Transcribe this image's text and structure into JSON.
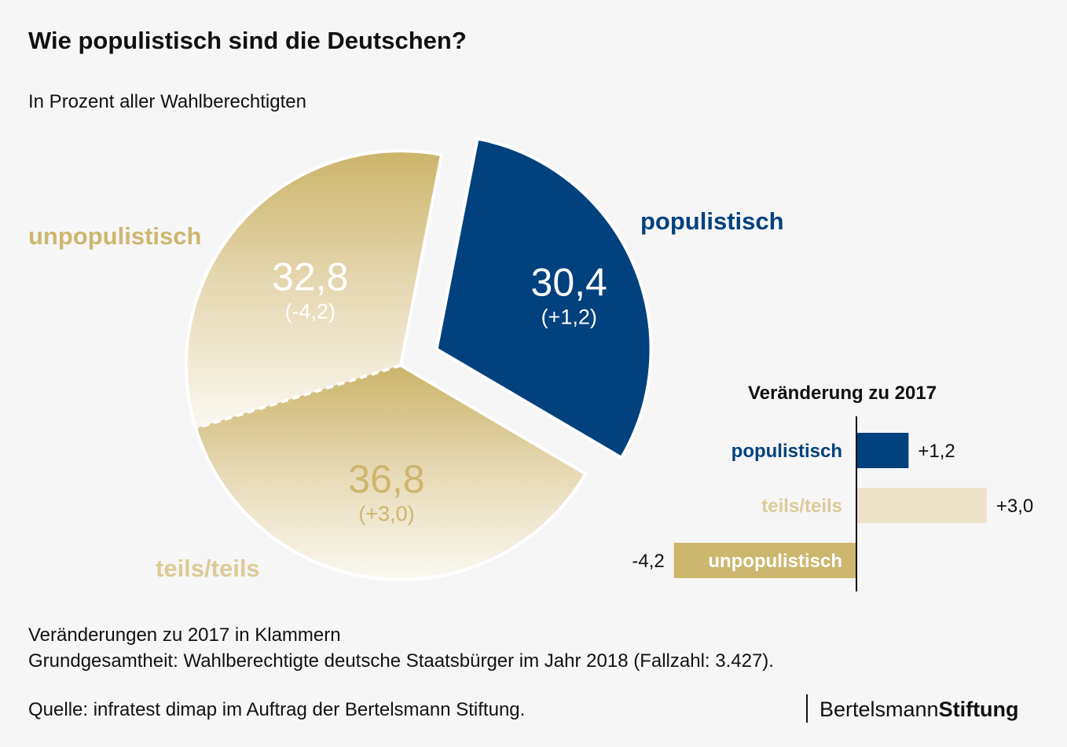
{
  "title": "Wie populistisch sind die Deutschen?",
  "subtitle": "In Prozent aller Wahlberechtigten",
  "colors": {
    "populistisch": "#00417e",
    "unpopulistisch": "#cdb66e",
    "teils": "#ece2c8",
    "teils_label": "#dccb96",
    "background": "#f6f6f6"
  },
  "chart_data": [
    {
      "type": "pie",
      "title": "Wie populistisch sind die Deutschen?",
      "unit": "Prozent",
      "slices": [
        {
          "name": "populistisch",
          "value": 30.4,
          "label": "30,4",
          "change_label": "(+1,2)",
          "exploded": true
        },
        {
          "name": "teils/teils",
          "value": 36.8,
          "label": "36,8",
          "change_label": "(+3,0)",
          "exploded": false
        },
        {
          "name": "unpopulistisch",
          "value": 32.8,
          "label": "32,8",
          "change_label": "(-4,2)",
          "exploded": false
        }
      ]
    },
    {
      "type": "bar",
      "orientation": "horizontal",
      "title": "Veränderung zu 2017",
      "categories": [
        "populistisch",
        "teils/teils",
        "unpopulistisch"
      ],
      "values": [
        1.2,
        3.0,
        -4.2
      ],
      "value_labels": [
        "+1,2",
        "+3,0",
        "-4,2"
      ]
    }
  ],
  "labels": {
    "populistisch": "populistisch",
    "unpopulistisch": "unpopulistisch",
    "teils": "teils/teils"
  },
  "notes": [
    "Veränderungen zu 2017 in Klammern",
    "Grundgesamtheit: Wahlberechtigte deutsche Staatsbürger im Jahr 2018 (Fallzahl: 3.427)."
  ],
  "source": "Quelle: infratest dimap im Auftrag der Bertelsmann Stiftung.",
  "logo": {
    "part1": "Bertelsmann",
    "part2": "Stiftung"
  }
}
